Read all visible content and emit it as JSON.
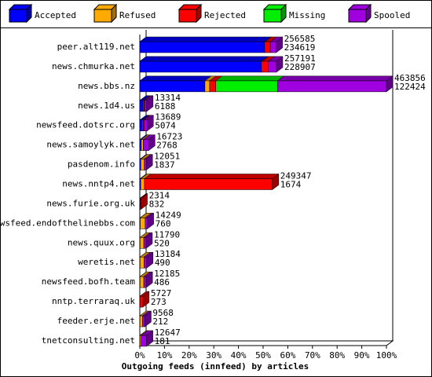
{
  "chart_data": {
    "type": "bar",
    "orientation": "horizontal",
    "stacked": true,
    "xlabel": "Outgoing feeds (innfeed) by articles",
    "categories": [
      "peer.alt119.net",
      "news.chmurka.net",
      "news.bbs.nz",
      "news.1d4.us",
      "newsfeed.dotsrc.org",
      "news.samoylyk.net",
      "pasdenom.info",
      "news.nntp4.net",
      "news.furie.org.uk",
      "newsfeed.endofthelinebbs.com",
      "news.quux.org",
      "weretis.net",
      "newsfeed.bofh.team",
      "nntp.terraraq.uk",
      "feeder.erje.net",
      "tnetconsulting.net"
    ],
    "xlim": [
      0,
      100
    ],
    "xticks": [
      {
        "value": 0,
        "label": "0%"
      },
      {
        "value": 10,
        "label": "10%"
      },
      {
        "value": 20,
        "label": "20%"
      },
      {
        "value": 30,
        "label": "30%"
      },
      {
        "value": 40,
        "label": "40%"
      },
      {
        "value": 50,
        "label": "50%"
      },
      {
        "value": 60,
        "label": "60%"
      },
      {
        "value": 70,
        "label": "70%"
      },
      {
        "value": 80,
        "label": "80%"
      },
      {
        "value": 90,
        "label": "90%"
      },
      {
        "value": 100,
        "label": "100%"
      }
    ],
    "series": [
      {
        "name": "Accepted",
        "color": "#0000ff",
        "values": [
          50.6,
          49.3,
          26.4,
          1.33,
          1.09,
          0.6,
          0.4,
          0.36,
          0.18,
          0.16,
          0.11,
          0.11,
          0.1,
          0.06,
          0.05,
          0.04
        ]
      },
      {
        "name": "Refused",
        "color": "#ffaa00",
        "values": [
          0.3,
          0.3,
          1.9,
          0.3,
          0.3,
          0.8,
          1.4,
          1.5,
          0,
          2.0,
          1.5,
          1.6,
          1.5,
          0,
          1.0,
          0.5
        ]
      },
      {
        "name": "Rejected",
        "color": "#ff0000",
        "values": [
          2.0,
          2.5,
          2.5,
          0.3,
          0.4,
          0,
          0,
          51.9,
          0.32,
          0,
          0,
          0,
          0,
          1.17,
          0,
          0
        ]
      },
      {
        "name": "Missing",
        "color": "#00ee00",
        "values": [
          0,
          0,
          25.0,
          0,
          0,
          0,
          0,
          0,
          0,
          0,
          0,
          0,
          0,
          0,
          0,
          0
        ]
      },
      {
        "name": "Spooled",
        "color": "#a000e0",
        "values": [
          2.4,
          3.3,
          44.2,
          0.9,
          1.16,
          2.2,
          0.8,
          0,
          0,
          0.9,
          0.93,
          1.1,
          1.0,
          0,
          1.0,
          2.2
        ]
      }
    ],
    "offered": [
      256585,
      257191,
      463856,
      13314,
      13689,
      16723,
      12051,
      249347,
      2314,
      14249,
      11790,
      13184,
      12185,
      5727,
      9568,
      12647
    ],
    "accepted_articles": [
      234619,
      228907,
      122424,
      6188,
      5074,
      2768,
      1837,
      1674,
      832,
      760,
      520,
      490,
      486,
      273,
      212,
      181
    ]
  }
}
